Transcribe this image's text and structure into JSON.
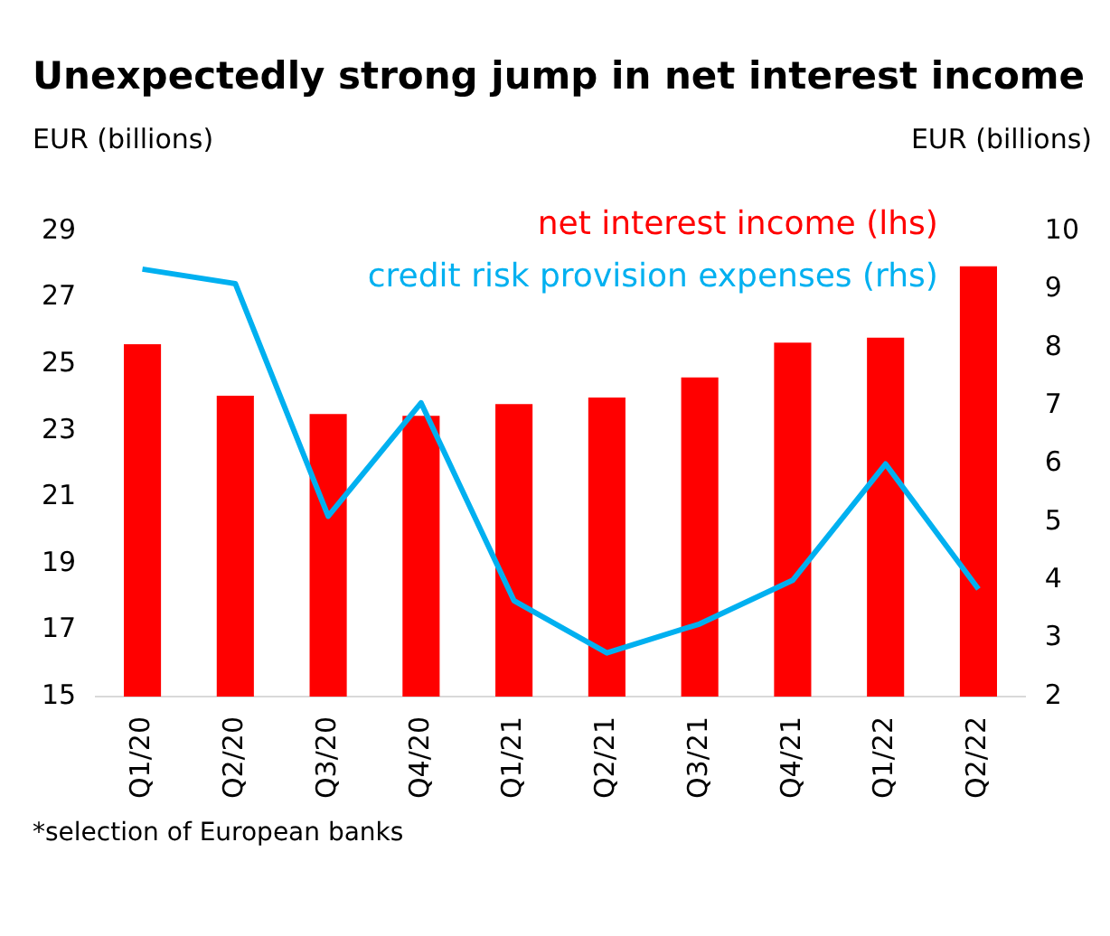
{
  "chart_data": {
    "type": "bar",
    "title": "Unexpectedly strong jump in net interest income",
    "ylabel": "EUR (billions)",
    "y2label": "EUR (billions)",
    "categories": [
      "Q1/20",
      "Q2/20",
      "Q3/20",
      "Q4/20",
      "Q1/21",
      "Q2/21",
      "Q3/21",
      "Q4/21",
      "Q1/22",
      "Q2/22"
    ],
    "series": [
      {
        "name": "net interest income (lhs)",
        "color": "#ff0000",
        "values": [
          25.6,
          24.05,
          23.5,
          23.45,
          23.8,
          24.0,
          24.6,
          25.65,
          25.8,
          27.95
        ]
      },
      {
        "name": "credit risk provision expenses (rhs)",
        "type": "line",
        "axis": "y2",
        "color": "#00b0f0",
        "values": [
          9.35,
          9.1,
          5.1,
          7.05,
          3.65,
          2.75,
          3.25,
          4.0,
          6.0,
          3.85
        ]
      }
    ],
    "ylim": [
      15,
      29
    ],
    "yticks": [
      15,
      17,
      19,
      21,
      23,
      25,
      27,
      29
    ],
    "y2lim": [
      2,
      10
    ],
    "y2ticks": [
      2,
      3,
      4,
      5,
      6,
      7,
      8,
      9,
      10
    ],
    "grid": false,
    "legend": "top right",
    "marker": "none",
    "line_style": "solid",
    "annotations": [
      "*selection of European banks"
    ]
  }
}
